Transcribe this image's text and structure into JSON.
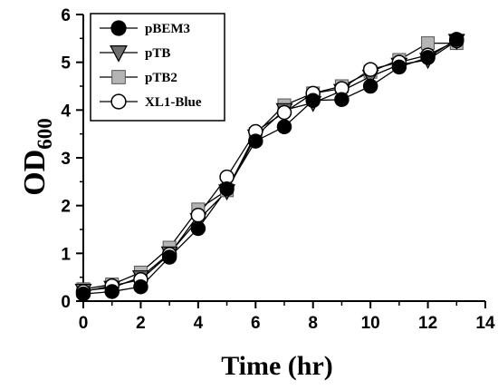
{
  "chart_data": {
    "type": "line",
    "x": [
      0,
      1,
      2,
      3,
      4,
      5,
      6,
      7,
      8,
      9,
      10,
      11,
      12,
      13
    ],
    "xlabel": "Time (hr)",
    "ylabel_main": "OD",
    "ylabel_sub": "600",
    "xlim": [
      0,
      14
    ],
    "ylim": [
      0,
      6
    ],
    "xticks": [
      "0",
      "2",
      "4",
      "6",
      "8",
      "10",
      "12",
      "14"
    ],
    "yticks": [
      "0",
      "1",
      "2",
      "3",
      "4",
      "5",
      "6"
    ],
    "grid": false,
    "legend_position": "top-left",
    "series": [
      {
        "name": "pBEM3",
        "marker": "circle-filled",
        "fill": "#000000",
        "values": [
          0.15,
          0.2,
          0.3,
          0.92,
          1.52,
          2.35,
          3.35,
          3.65,
          4.2,
          4.22,
          4.5,
          4.9,
          5.1,
          5.48
        ]
      },
      {
        "name": "pTB",
        "marker": "triangle-down",
        "fill": "#6e6e6e",
        "values": [
          0.22,
          0.28,
          0.5,
          1.0,
          1.7,
          2.3,
          3.45,
          4.0,
          4.15,
          4.4,
          4.7,
          4.95,
          5.05,
          5.45
        ]
      },
      {
        "name": "pTB2",
        "marker": "square",
        "fill": "#b4b4b4",
        "values": [
          0.25,
          0.35,
          0.6,
          1.12,
          1.92,
          2.32,
          3.5,
          4.1,
          4.35,
          4.5,
          4.8,
          5.05,
          5.4,
          5.4
        ]
      },
      {
        "name": "XL1-Blue",
        "marker": "circle-open",
        "fill": "#ffffff",
        "values": [
          0.2,
          0.32,
          0.45,
          0.98,
          1.8,
          2.6,
          3.55,
          3.95,
          4.35,
          4.45,
          4.85,
          5.0,
          5.15,
          5.45
        ]
      }
    ]
  }
}
